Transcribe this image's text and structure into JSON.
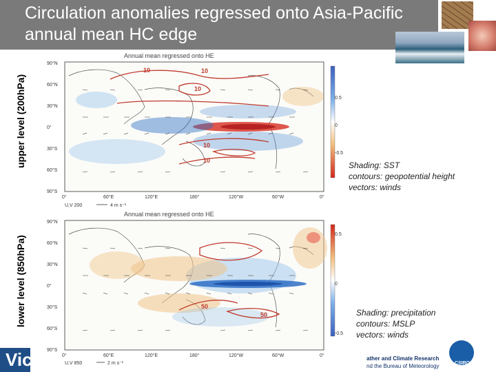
{
  "slide": {
    "title": "Circulation anomalies regressed onto Asia-Pacific annual mean HC edge",
    "upper": {
      "side_label": "upper level (200hPa)",
      "plot_title": "Annual mean regressed onto HE",
      "caption": [
        "Shading: SST",
        "contours: geopotential height",
        "vectors: winds"
      ],
      "vector_key": "U,V 200",
      "vector_unit": "4 m s⁻¹",
      "colorbar_ticks": [
        "0.5",
        "0",
        "-0.5"
      ]
    },
    "lower": {
      "side_label": "lower level (850hPa)",
      "plot_title": "Annual mean regressed onto HE",
      "caption": [
        "Shading: precipitation",
        "contours: MSLP",
        "vectors: winds"
      ],
      "vector_key": "U,V 850",
      "vector_unit": "2 m s⁻¹",
      "colorbar_ticks": [
        "0.5",
        "0",
        "-0.5"
      ]
    },
    "lat_labels": [
      "90°N",
      "60°N",
      "30°N",
      "0°",
      "30°S",
      "60°S",
      "90°S"
    ],
    "lon_labels": [
      "0°",
      "60°E",
      "120°E",
      "180°",
      "120°W",
      "60°W",
      "0°"
    ],
    "footer": {
      "line1": "ather and Climate Research",
      "line2": "nd the Bureau of Meteorology",
      "left_logo": "Vic",
      "right_logo": "CSIRO"
    },
    "colors": {
      "header": "#7a7a7a",
      "contour": "#c0392b",
      "warm": "#d93a2e",
      "cool": "#2f6fc6"
    }
  }
}
